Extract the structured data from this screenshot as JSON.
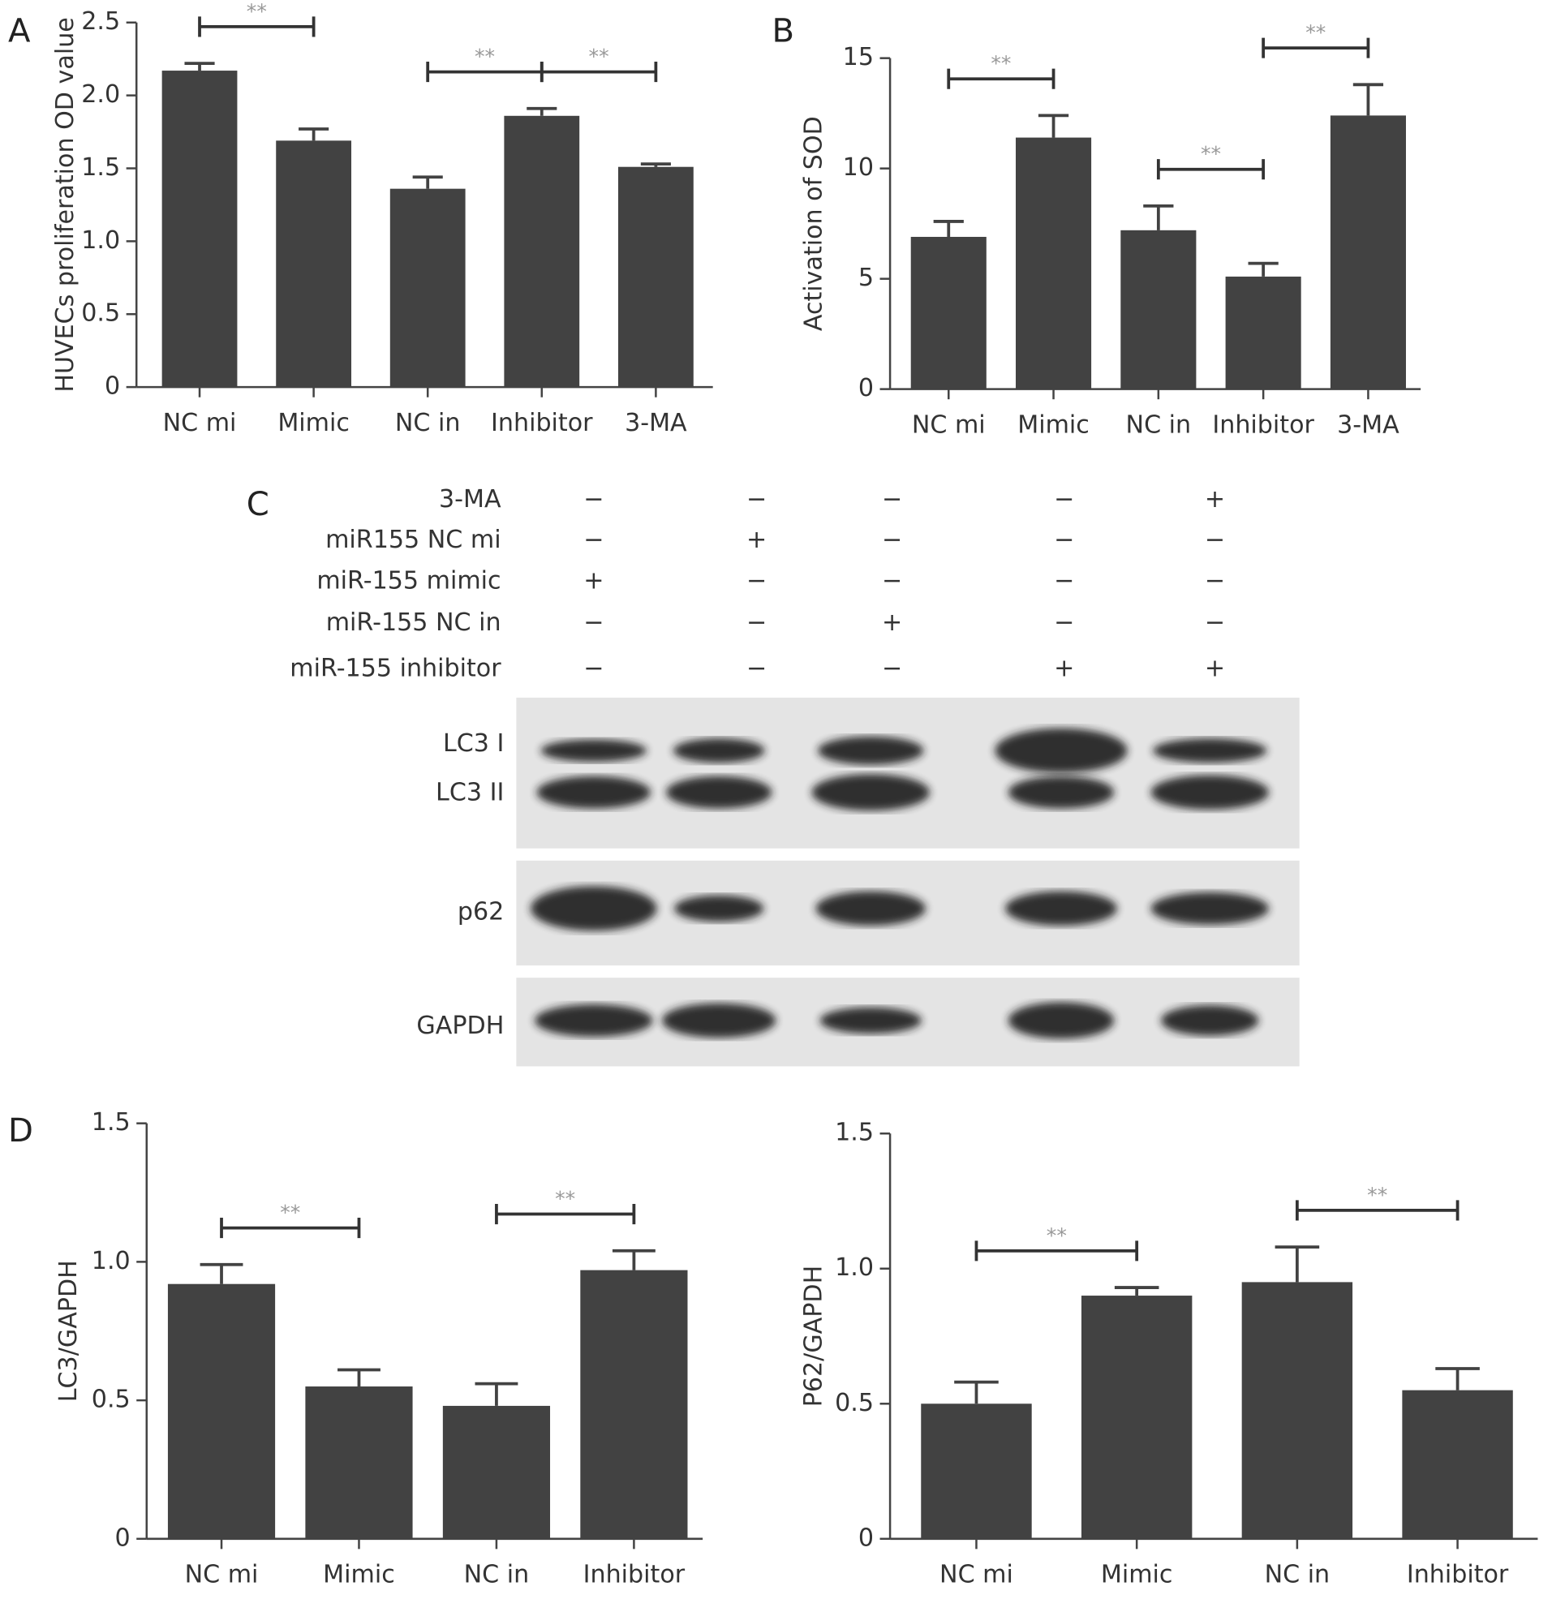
{
  "chart_data": [
    {
      "type": "bar",
      "panel": "A",
      "ylabel": "HUVECs proliferation OD value",
      "color": "#424242",
      "categories": [
        "NC mi",
        "Mimic",
        "NC in",
        "Inhibitor",
        "3-MA"
      ],
      "values": [
        2.17,
        1.69,
        1.36,
        1.86,
        1.51
      ],
      "errors": [
        0.05,
        0.08,
        0.08,
        0.05,
        0.02
      ],
      "ylim": [
        0,
        2.5
      ],
      "yticks": [
        0,
        0.5,
        {
          "value": 1,
          "label": "1.0"
        },
        1.5,
        {
          "value": 2,
          "label": "2.0"
        },
        2.5
      ],
      "significance": [
        {
          "from": 0,
          "to": 1,
          "label": "**"
        },
        {
          "from": 2,
          "to": 3,
          "label": "**"
        },
        {
          "from": 3,
          "to": 4,
          "label": "**"
        }
      ]
    },
    {
      "type": "bar",
      "panel": "B",
      "ylabel": "Activation of SOD",
      "color": "#424242",
      "categories": [
        "NC mi",
        "Mimic",
        "NC in",
        "Inhibitor",
        "3-MA"
      ],
      "values": [
        6.9,
        11.4,
        7.2,
        5.1,
        12.4
      ],
      "errors": [
        0.7,
        1.0,
        1.1,
        0.6,
        1.4
      ],
      "ylim": [
        0,
        15
      ],
      "yticks": [
        0,
        5,
        10,
        15
      ],
      "significance": [
        {
          "from": 0,
          "to": 1,
          "label": "**"
        },
        {
          "from": 2,
          "to": 3,
          "label": "**"
        },
        {
          "from": 3,
          "to": 4,
          "label": "**"
        }
      ]
    },
    {
      "type": "bar",
      "panel": "D",
      "ylabel": "LC3/GAPDH",
      "color": "#424242",
      "categories": [
        "NC mi",
        "Mimic",
        "NC in",
        "Inhibitor"
      ],
      "values": [
        0.92,
        0.55,
        0.48,
        0.97
      ],
      "errors": [
        0.07,
        0.06,
        0.08,
        0.07
      ],
      "ylim": [
        0,
        1.5
      ],
      "yticks": [
        0,
        0.5,
        {
          "value": 1,
          "label": "1.0"
        },
        1.5
      ],
      "significance": [
        {
          "from": 0,
          "to": 1,
          "label": "**"
        },
        {
          "from": 2,
          "to": 3,
          "label": "**"
        }
      ]
    },
    {
      "type": "bar",
      "ylabel": "P62/GAPDH",
      "color": "#424242",
      "categories": [
        "NC mi",
        "Mimic",
        "NC in",
        "Inhibitor"
      ],
      "values": [
        0.5,
        0.9,
        0.95,
        0.55
      ],
      "errors": [
        0.08,
        0.03,
        0.13,
        0.08
      ],
      "ylim": [
        0,
        1.5
      ],
      "yticks": [
        0,
        0.5,
        {
          "value": 1,
          "label": "1.0"
        },
        1.5
      ],
      "significance": [
        {
          "from": 0,
          "to": 1,
          "label": "**"
        },
        {
          "from": 2,
          "to": 3,
          "label": "**"
        }
      ]
    }
  ],
  "western_blot": {
    "panel": "C",
    "treatments": [
      {
        "label": "3-MA",
        "signs": [
          "−",
          "−",
          "−",
          "−",
          "+"
        ]
      },
      {
        "label": "miR155 NC mi",
        "signs": [
          "−",
          "+",
          "−",
          "−",
          "−"
        ]
      },
      {
        "label": "miR-155 mimic",
        "signs": [
          "+",
          "−",
          "−",
          "−",
          "−"
        ]
      },
      {
        "label": "miR-155 NC in",
        "signs": [
          "−",
          "−",
          "+",
          "−",
          "−"
        ]
      },
      {
        "label": "miR-155 inhibitor",
        "signs": [
          "−",
          "−",
          "−",
          "+",
          "+"
        ]
      }
    ],
    "bands": [
      "LC3 I",
      "LC3 II",
      "p62",
      "GAPDH"
    ]
  }
}
